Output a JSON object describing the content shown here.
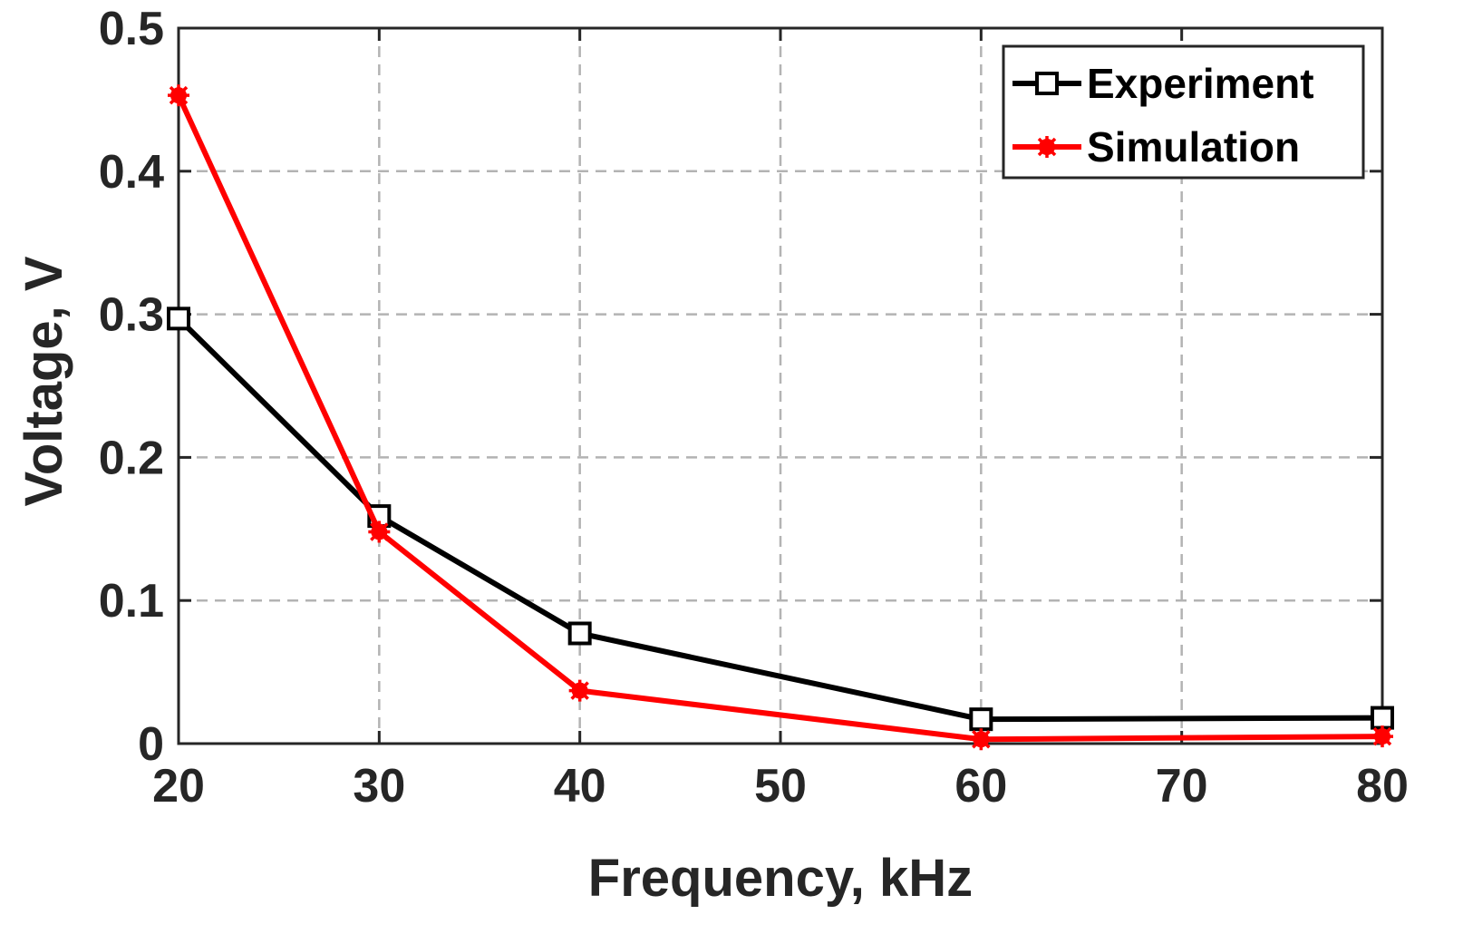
{
  "chart_data": {
    "type": "line",
    "title": "",
    "xlabel": "Frequency, kHz",
    "ylabel": "Voltage, V",
    "xlim": [
      20,
      80
    ],
    "ylim": [
      0,
      0.5
    ],
    "xticks": [
      20,
      30,
      40,
      50,
      60,
      70,
      80
    ],
    "xtick_labels": [
      "20",
      "30",
      "40",
      "50",
      "60",
      "70",
      "80"
    ],
    "yticks": [
      0,
      0.1,
      0.2,
      0.3,
      0.4,
      0.5
    ],
    "ytick_labels": [
      "0",
      "0.1",
      "0.2",
      "0.3",
      "0.4",
      "0.5"
    ],
    "grid": true,
    "legend_position": "top-right",
    "series": [
      {
        "name": "Experiment",
        "color": "#000000",
        "marker": "square",
        "x": [
          20,
          30,
          40,
          60,
          80
        ],
        "y": [
          0.297,
          0.159,
          0.077,
          0.017,
          0.018
        ]
      },
      {
        "name": "Simulation",
        "color": "#ff0000",
        "marker": "asterisk",
        "x": [
          20,
          30,
          40,
          60,
          80
        ],
        "y": [
          0.453,
          0.148,
          0.037,
          0.003,
          0.005
        ]
      }
    ]
  }
}
